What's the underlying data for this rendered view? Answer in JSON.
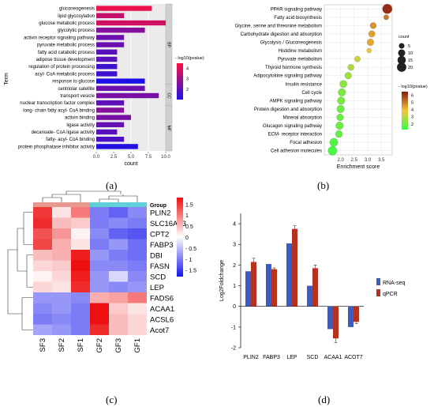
{
  "panels": [
    {
      "label": "(a)"
    },
    {
      "label": "(b)"
    },
    {
      "label": "(c)"
    },
    {
      "label": "(d)"
    }
  ],
  "chart_data": [
    {
      "type": "bar",
      "orientation": "horizontal",
      "ylabel": "Term",
      "xlabel": "count",
      "xlim": [
        0,
        10
      ],
      "xticks": [
        "0.0",
        "2.5",
        "5.0",
        "7.5",
        "10.0"
      ],
      "categories": [
        "gluconeogenesis",
        "lipid glycosylation",
        "glucose metabolic process",
        "glycolytic process",
        "activin receptor signaling pathway",
        "pyruvate metabolic process",
        "fatty acid catabolic process",
        "adipose tissue development",
        "regulation of protein processing",
        "acyl- CoA metabolic process",
        "response to glucose",
        "centriolar satellite",
        "transport vesicle",
        "nuclear transcription factor complex",
        "long- chain fatty acyl- CoA binding",
        "activin binding",
        "ligase activity",
        "decanoate- CoA ligase activity",
        "fatty- acyl- CoA binding",
        "protein phosphatase inhibitor activity"
      ],
      "values": [
        8,
        4,
        10,
        7,
        4,
        4,
        3,
        3,
        3,
        3,
        7,
        7,
        9,
        4,
        4,
        5,
        4,
        3,
        4,
        6
      ],
      "neg_log10_pvalue": [
        4.2,
        3.6,
        3.8,
        2.6,
        2.2,
        2.2,
        1.9,
        1.9,
        1.5,
        1.5,
        1.0,
        2.2,
        2.4,
        2.0,
        2.6,
        2.4,
        2.1,
        1.9,
        1.7,
        1.1
      ],
      "groups": [
        {
          "name": "BP",
          "start": 0,
          "end": 10
        },
        {
          "name": "CC",
          "start": 11,
          "end": 13
        },
        {
          "name": "MF",
          "start": 14,
          "end": 19
        }
      ],
      "legend": {
        "title": "- log10(pvalue)",
        "ticks": [
          "4",
          "3",
          "2"
        ],
        "range": [
          1,
          4.5
        ],
        "colors": [
          "#1e10e8",
          "#ff1040"
        ]
      }
    },
    {
      "type": "scatter",
      "xlabel": "Enrichment score",
      "xlim": [
        1.4,
        3.9
      ],
      "xticks": [
        "2.0",
        "2.5",
        "3.0",
        "3.5"
      ],
      "categories": [
        "PPAR signaling pathway",
        "Fatty acid biosynthesis",
        "Glycine, serine and threonine metabolism",
        "Carbohydrate digestion and absorption",
        "Glycolysis / Gluconeogenesis",
        "Histidine metabolism",
        "Pyruvate metabolism",
        "Thyroid hormone synthesis",
        "Adipocytokine signaling pathway",
        "Insulin resistance",
        "Cell cycle",
        "AMPK signaling pathway",
        "Protein digestion and absorption",
        "Mineral absorption",
        "Glucagon signaling pathway",
        "ECM- receptor interaction",
        "Focal adhesion",
        "Cell adhesion molecules"
      ],
      "x": [
        3.72,
        3.68,
        3.2,
        3.15,
        3.1,
        3.05,
        2.62,
        2.38,
        2.28,
        2.1,
        2.05,
        2.02,
        2.0,
        1.98,
        1.96,
        1.94,
        1.75,
        1.7
      ],
      "count": [
        22,
        4,
        7,
        8,
        9,
        3,
        6,
        7,
        9,
        11,
        12,
        12,
        12,
        9,
        12,
        10,
        15,
        18
      ],
      "neg_log10_pvalue": [
        6.2,
        5.0,
        4.6,
        4.4,
        4.3,
        3.8,
        3.3,
        2.9,
        2.7,
        2.4,
        2.2,
        2.2,
        2.0,
        2.0,
        2.0,
        1.8,
        1.6,
        1.5
      ],
      "size_legend": {
        "title": "count",
        "values": [
          "5",
          "10",
          "15",
          "20"
        ]
      },
      "color_legend": {
        "title": "- log10(pvalue)",
        "ticks": [
          "6",
          "5",
          "4",
          "3",
          "2"
        ],
        "range": [
          1.2,
          6.5
        ],
        "colors": [
          "#33ff44",
          "#f5c43a",
          "#8b1a10"
        ]
      }
    },
    {
      "type": "heatmap",
      "rows": [
        "PLIN2",
        "SLC16A13",
        "CPT2",
        "FABP3",
        "DBI",
        "FASN",
        "SCD",
        "LEP",
        "FADS6",
        "ACAA1",
        "ACSL6",
        "Acot7"
      ],
      "columns": [
        "SF3",
        "SF2",
        "SF1",
        "GF2",
        "GF3",
        "GF1"
      ],
      "group_label": "Group",
      "group_colors": [
        "#e8998f",
        "#e8998f",
        "#e8998f",
        "#5fd0d8",
        "#5fd0d8",
        "#5fd0d8"
      ],
      "values": [
        [
          1.5,
          0.2,
          1.0,
          -1.0,
          -1.2,
          -0.9
        ],
        [
          1.6,
          0.5,
          0.4,
          -1.0,
          -0.9,
          -1.0
        ],
        [
          1.3,
          0.8,
          0.1,
          -0.9,
          -1.2,
          -1.3
        ],
        [
          1.4,
          0.6,
          0.2,
          -1.0,
          -0.8,
          -1.1
        ],
        [
          0.5,
          0.6,
          1.7,
          -0.8,
          -1.0,
          -1.1
        ],
        [
          0.3,
          0.4,
          1.8,
          -0.9,
          -0.9,
          -1.0
        ],
        [
          0.1,
          0.3,
          1.7,
          -0.8,
          -0.3,
          -0.9
        ],
        [
          0.3,
          0.2,
          1.6,
          -0.8,
          -0.9,
          -0.8
        ],
        [
          -0.8,
          -0.8,
          -0.9,
          0.6,
          0.7,
          1.0
        ],
        [
          -0.9,
          -0.8,
          -1.0,
          1.8,
          0.4,
          0.2
        ],
        [
          -1.0,
          -0.9,
          -1.0,
          1.8,
          0.5,
          0.3
        ],
        [
          -0.7,
          -0.8,
          -1.0,
          1.6,
          0.5,
          0.3
        ]
      ],
      "legend": {
        "ticks": [
          "1.5",
          "1",
          "0.5",
          "0",
          "- 0.5",
          "- 1",
          "- 1.5"
        ],
        "range": [
          -1.8,
          1.8
        ]
      }
    },
    {
      "type": "bar",
      "ylabel": "Log2Foldchange",
      "ylim": [
        -2,
        4.5
      ],
      "yticks": [
        "4",
        "3",
        "2",
        "1",
        "0",
        "-1",
        "-2"
      ],
      "categories": [
        "PLIN2",
        "FABP3",
        "LEP",
        "SCD",
        "ACAA1",
        "ACOT7"
      ],
      "series": [
        {
          "name": "RNA-seq",
          "color": "#3b5cc4",
          "values": [
            1.7,
            2.05,
            3.05,
            1.0,
            -1.1,
            -1.0
          ],
          "errors": [
            0,
            0,
            0,
            0,
            0,
            0
          ]
        },
        {
          "name": "qPCR",
          "color": "#b5321f",
          "values": [
            2.15,
            1.8,
            3.75,
            1.85,
            -1.55,
            -0.75
          ],
          "errors": [
            0.18,
            0.06,
            0.15,
            0.15,
            0.2,
            0.08
          ]
        }
      ]
    }
  ]
}
